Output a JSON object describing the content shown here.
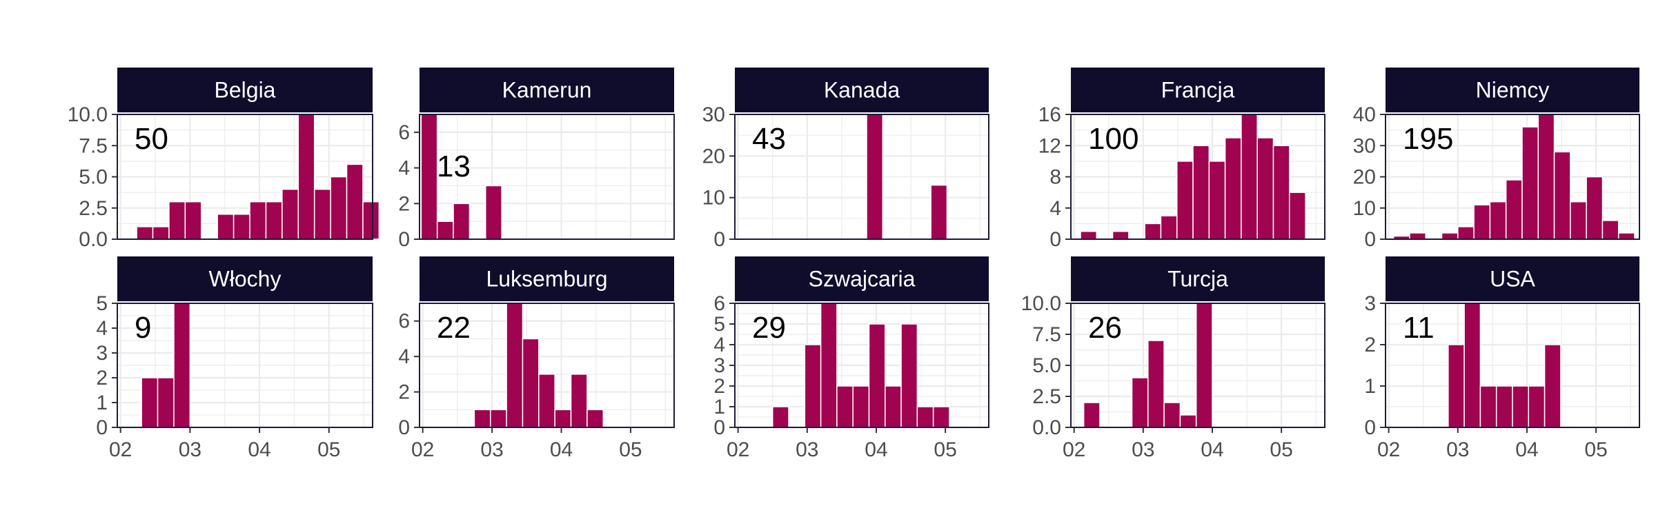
{
  "colors": {
    "bar": "#A0034F",
    "strip": "#0F0C2C",
    "grid": "#EBEBEB",
    "panel_border": "#1A1A3A",
    "tick_text": "#4D4D4D"
  },
  "chart_data": {
    "type": "bar",
    "layout": "faceted small multiples (2 rows x 5 columns)",
    "x_axis": {
      "type": "date (month, weekly bins)",
      "ticks": [
        "02",
        "03",
        "04",
        "05"
      ],
      "tick_positions": [
        0,
        4.3,
        8.6,
        12.9
      ],
      "range": [
        -0.2,
        15.6
      ]
    },
    "grid": true,
    "bin_positions": [
      0,
      1,
      2,
      3,
      4,
      5,
      6,
      7,
      8,
      9,
      10,
      11,
      12,
      13,
      14,
      15
    ],
    "panels": [
      {
        "name": "Belgia",
        "total": "50",
        "ymax": 10,
        "yticks": [
          0,
          2.5,
          5,
          7.5,
          10
        ],
        "ytick_labels": [
          "0.0",
          "2.5",
          "5.0",
          "7.5",
          "10.0"
        ],
        "values": [
          0,
          0,
          1,
          1,
          3,
          3,
          0,
          2,
          2,
          3,
          3,
          4,
          10,
          4,
          5,
          6,
          3
        ],
        "start": -1
      },
      {
        "name": "Kamerun",
        "total": "13",
        "ymax": 7,
        "yticks": [
          0,
          2,
          4,
          6
        ],
        "ytick_labels": [
          "0",
          "2",
          "4",
          "6"
        ],
        "values": [
          7,
          1,
          2,
          0,
          3
        ],
        "start": -0.1
      },
      {
        "name": "Kanada",
        "total": "43",
        "ymax": 30,
        "yticks": [
          0,
          10,
          20,
          30
        ],
        "ytick_labels": [
          "0",
          "10",
          "20",
          "30"
        ],
        "values": [
          0,
          0,
          0,
          0,
          0,
          0,
          0,
          0,
          30,
          0,
          0,
          0,
          13
        ],
        "start": 0
      },
      {
        "name": "Francja",
        "total": "100",
        "ymax": 16,
        "yticks": [
          0,
          4,
          8,
          12,
          16
        ],
        "ytick_labels": [
          "0",
          "4",
          "8",
          "12",
          "16"
        ],
        "values": [
          0,
          1,
          0,
          1,
          0,
          2,
          3,
          10,
          12,
          10,
          13,
          17,
          13,
          12,
          6
        ],
        "start": -0.6
      },
      {
        "name": "Niemcy",
        "total": "195",
        "ymax": 40,
        "yticks": [
          0,
          10,
          20,
          30,
          40
        ],
        "ytick_labels": [
          "0",
          "10",
          "20",
          "30",
          "40"
        ],
        "values": [
          1,
          2,
          0,
          2,
          4,
          11,
          12,
          19,
          36,
          40,
          28,
          12,
          20,
          6,
          2
        ],
        "start": 0.3
      },
      {
        "name": "Włochy",
        "total": "9",
        "ymax": 5,
        "yticks": [
          0,
          1,
          2,
          3,
          4,
          5
        ],
        "ytick_labels": [
          "0",
          "1",
          "2",
          "3",
          "4",
          "5"
        ],
        "values": [
          2,
          2,
          5
        ],
        "start": 1.3
      },
      {
        "name": "Luksemburg",
        "total": "22",
        "ymax": 7,
        "yticks": [
          0,
          2,
          4,
          6
        ],
        "ytick_labels": [
          "0",
          "2",
          "4",
          "6"
        ],
        "values": [
          1,
          1,
          7,
          5,
          3,
          1,
          3,
          1
        ],
        "start": 3.2
      },
      {
        "name": "Szwajcaria",
        "total": "29",
        "ymax": 6,
        "yticks": [
          0,
          1,
          2,
          3,
          4,
          5,
          6
        ],
        "ytick_labels": [
          "0",
          "1",
          "2",
          "3",
          "4",
          "5",
          "6"
        ],
        "values": [
          1,
          0,
          4,
          6,
          2,
          2,
          5,
          2,
          5,
          1,
          1
        ],
        "start": 2.15
      },
      {
        "name": "Turcja",
        "total": "26",
        "ymax": 10,
        "yticks": [
          0,
          2.5,
          5,
          7.5,
          10
        ],
        "ytick_labels": [
          "0.0",
          "2.5",
          "5.0",
          "7.5",
          "10.0"
        ],
        "values": [
          2,
          0,
          0,
          4,
          7,
          2,
          1,
          10
        ],
        "start": 0.6
      },
      {
        "name": "USA",
        "total": "11",
        "ymax": 3,
        "yticks": [
          0,
          1,
          2,
          3
        ],
        "ytick_labels": [
          "0",
          "1",
          "2",
          "3"
        ],
        "values": [
          2,
          3,
          1,
          1,
          1,
          1,
          2
        ],
        "start": 3.7
      }
    ]
  }
}
